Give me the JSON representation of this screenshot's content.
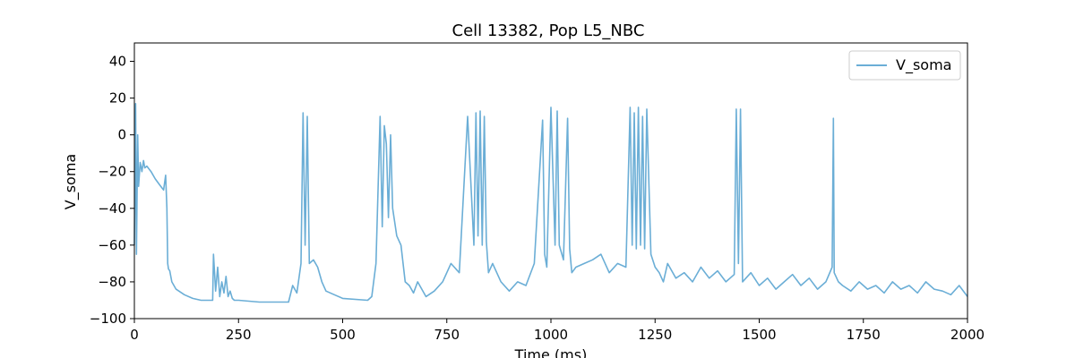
{
  "chart_data": {
    "type": "line",
    "title": "Cell 13382, Pop L5_NBC",
    "xlabel": "Time (ms)",
    "ylabel": "V_soma",
    "xlim": [
      0,
      2000
    ],
    "ylim": [
      -100,
      50
    ],
    "xticks": [
      0,
      250,
      500,
      750,
      1000,
      1250,
      1500,
      1750,
      2000
    ],
    "yticks": [
      -100,
      -80,
      -60,
      -40,
      -20,
      0,
      20,
      40
    ],
    "grid": false,
    "legend_position": "top-right",
    "series": [
      {
        "name": "V_soma",
        "color": "#6baed6",
        "x": [
          0,
          3,
          5,
          8,
          10,
          14,
          18,
          22,
          25,
          30,
          40,
          50,
          60,
          70,
          75,
          78,
          80,
          82,
          85,
          90,
          100,
          120,
          140,
          160,
          188,
          190,
          195,
          200,
          205,
          210,
          215,
          220,
          225,
          230,
          235,
          240,
          250,
          300,
          370,
          380,
          390,
          400,
          405,
          410,
          415,
          420,
          430,
          440,
          450,
          460,
          480,
          500,
          560,
          570,
          580,
          590,
          595,
          600,
          605,
          610,
          615,
          620,
          630,
          640,
          650,
          660,
          670,
          680,
          700,
          720,
          740,
          760,
          780,
          800,
          815,
          820,
          825,
          830,
          835,
          840,
          845,
          850,
          860,
          880,
          900,
          920,
          940,
          960,
          980,
          985,
          990,
          1000,
          1010,
          1015,
          1020,
          1030,
          1040,
          1045,
          1050,
          1060,
          1080,
          1100,
          1120,
          1140,
          1160,
          1180,
          1190,
          1195,
          1200,
          1205,
          1210,
          1215,
          1220,
          1225,
          1230,
          1240,
          1250,
          1260,
          1270,
          1280,
          1300,
          1320,
          1340,
          1360,
          1380,
          1400,
          1420,
          1440,
          1445,
          1450,
          1455,
          1460,
          1480,
          1500,
          1520,
          1540,
          1560,
          1580,
          1600,
          1620,
          1640,
          1660,
          1675,
          1678,
          1680,
          1690,
          1700,
          1720,
          1740,
          1760,
          1780,
          1800,
          1820,
          1840,
          1860,
          1880,
          1900,
          1920,
          1940,
          1960,
          1980,
          2000
        ],
        "y": [
          -60,
          17,
          -65,
          0,
          -28,
          -15,
          -20,
          -14,
          -18,
          -17,
          -20,
          -24,
          -27,
          -30,
          -22,
          -40,
          -70,
          -73,
          -74,
          -80,
          -84,
          -87,
          -89,
          -90,
          -90,
          -65,
          -85,
          -72,
          -88,
          -80,
          -86,
          -77,
          -88,
          -85,
          -89,
          -90,
          -90,
          -91,
          -91,
          -82,
          -86,
          -70,
          12,
          -60,
          10,
          -70,
          -68,
          -72,
          -80,
          -85,
          -87,
          -89,
          -90,
          -88,
          -70,
          10,
          -50,
          5,
          -5,
          -45,
          0,
          -40,
          -55,
          -60,
          -80,
          -82,
          -86,
          -80,
          -88,
          -85,
          -80,
          -70,
          -75,
          10,
          -60,
          12,
          -55,
          13,
          -60,
          10,
          -58,
          -75,
          -70,
          -80,
          -85,
          -80,
          -82,
          -70,
          8,
          -65,
          -72,
          15,
          -60,
          13,
          -60,
          -68,
          9,
          -62,
          -75,
          -72,
          -70,
          -68,
          -65,
          -75,
          -70,
          -72,
          15,
          -60,
          12,
          -62,
          15,
          -60,
          10,
          -62,
          14,
          -65,
          -72,
          -75,
          -80,
          -70,
          -78,
          -75,
          -80,
          -72,
          -78,
          -74,
          -80,
          -76,
          14,
          -70,
          14,
          -80,
          -75,
          -82,
          -78,
          -84,
          -80,
          -76,
          -82,
          -78,
          -84,
          -80,
          -72,
          9,
          -75,
          -80,
          -82,
          -85,
          -80,
          -84,
          -82,
          -86,
          -80,
          -84,
          -82,
          -86,
          -80,
          -84,
          -85,
          -87,
          -82,
          -88
        ]
      }
    ]
  }
}
